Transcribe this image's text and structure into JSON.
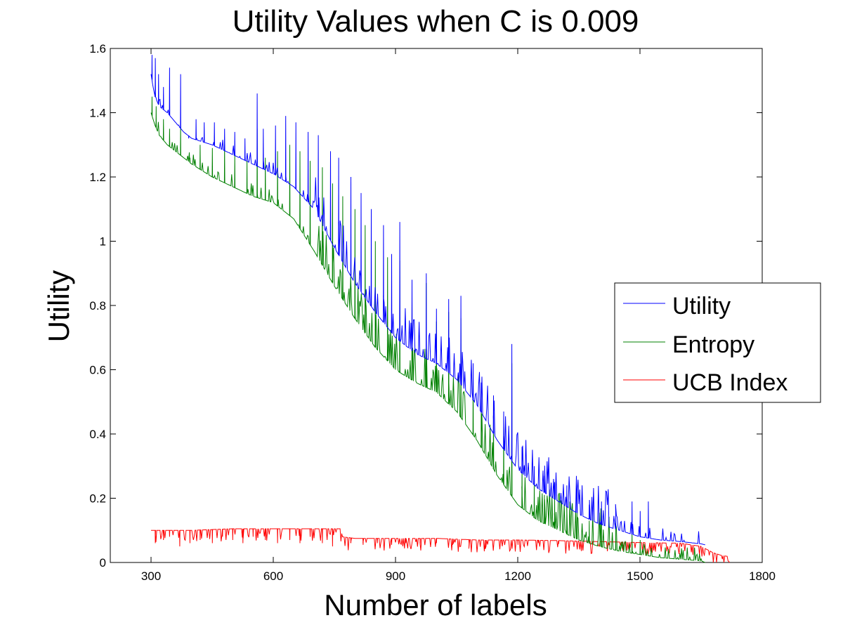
{
  "chart_data": {
    "type": "line",
    "title": "Utility Values when C is 0.009",
    "xlabel": "Number of labels",
    "ylabel": "Utility",
    "xlim": [
      200,
      1800
    ],
    "ylim": [
      0,
      1.6
    ],
    "x_ticks": [
      300,
      600,
      900,
      1200,
      1500,
      1800
    ],
    "y_ticks": [
      0,
      0.2,
      0.4,
      0.6,
      0.8,
      1,
      1.2,
      1.4,
      1.6
    ],
    "grid": false,
    "legend_position": "right",
    "series": [
      {
        "name": "Utility",
        "color": "#0000ff",
        "x": [
          300,
          305,
          310,
          320,
          340,
          360,
          380,
          400,
          450,
          500,
          550,
          600,
          650,
          700,
          750,
          800,
          850,
          900,
          950,
          1000,
          1050,
          1100,
          1150,
          1200,
          1250,
          1300,
          1350,
          1400,
          1450,
          1500,
          1550,
          1600,
          1650,
          1660
        ],
        "y": [
          1.52,
          1.48,
          1.45,
          1.42,
          1.4,
          1.37,
          1.34,
          1.32,
          1.3,
          1.27,
          1.24,
          1.21,
          1.17,
          1.1,
          0.98,
          0.87,
          0.78,
          0.7,
          0.65,
          0.62,
          0.57,
          0.49,
          0.38,
          0.29,
          0.23,
          0.19,
          0.15,
          0.12,
          0.1,
          0.08,
          0.07,
          0.065,
          0.058,
          0.055
        ],
        "spikes": [
          [
            302,
            1.58
          ],
          [
            310,
            1.57
          ],
          [
            318,
            1.52
          ],
          [
            330,
            1.48
          ],
          [
            345,
            1.54
          ],
          [
            372,
            1.52
          ],
          [
            392,
            1.32
          ],
          [
            410,
            1.38
          ],
          [
            430,
            1.37
          ],
          [
            455,
            1.37
          ],
          [
            480,
            1.35
          ],
          [
            505,
            1.34
          ],
          [
            530,
            1.32
          ],
          [
            560,
            1.46
          ],
          [
            575,
            1.35
          ],
          [
            605,
            1.36
          ],
          [
            630,
            1.39
          ],
          [
            655,
            1.37
          ],
          [
            685,
            1.34
          ],
          [
            710,
            1.33
          ],
          [
            740,
            1.28
          ],
          [
            760,
            1.26
          ],
          [
            790,
            1.2
          ],
          [
            815,
            1.15
          ],
          [
            840,
            1.1
          ],
          [
            870,
            1.05
          ],
          [
            890,
            0.96
          ],
          [
            910,
            1.06
          ],
          [
            940,
            0.88
          ],
          [
            975,
            0.9
          ],
          [
            1000,
            0.79
          ],
          [
            1030,
            0.82
          ],
          [
            1060,
            0.83
          ],
          [
            1090,
            0.62
          ],
          [
            1110,
            0.56
          ],
          [
            1140,
            0.52
          ],
          [
            1165,
            0.47
          ],
          [
            1185,
            0.68
          ],
          [
            1210,
            0.36
          ],
          [
            1240,
            0.3
          ],
          [
            1265,
            0.27
          ],
          [
            1290,
            0.25
          ],
          [
            1320,
            0.24
          ],
          [
            1345,
            0.22
          ],
          [
            1375,
            0.18
          ],
          [
            1405,
            0.19
          ],
          [
            1440,
            0.14
          ],
          [
            1480,
            0.19
          ],
          [
            1500,
            0.16
          ],
          [
            1520,
            0.19
          ]
        ]
      },
      {
        "name": "Entropy",
        "color": "#008000",
        "x": [
          300,
          305,
          310,
          320,
          340,
          360,
          380,
          400,
          450,
          500,
          550,
          600,
          650,
          700,
          750,
          800,
          850,
          900,
          950,
          1000,
          1050,
          1100,
          1150,
          1200,
          1250,
          1300,
          1350,
          1400,
          1450,
          1500,
          1550,
          1600,
          1650,
          1660
        ],
        "y": [
          1.4,
          1.38,
          1.36,
          1.33,
          1.3,
          1.28,
          1.26,
          1.24,
          1.2,
          1.17,
          1.14,
          1.12,
          1.07,
          0.97,
          0.86,
          0.76,
          0.67,
          0.6,
          0.56,
          0.53,
          0.47,
          0.38,
          0.27,
          0.18,
          0.13,
          0.1,
          0.07,
          0.05,
          0.035,
          0.025,
          0.015,
          0.01,
          0.005,
          0.0
        ],
        "spikes": [
          [
            302,
            1.45
          ],
          [
            312,
            1.42
          ],
          [
            330,
            1.38
          ],
          [
            345,
            1.35
          ],
          [
            372,
            1.36
          ],
          [
            395,
            1.26
          ],
          [
            420,
            1.3
          ],
          [
            450,
            1.29
          ],
          [
            480,
            1.3
          ],
          [
            505,
            1.27
          ],
          [
            535,
            1.25
          ],
          [
            560,
            1.35
          ],
          [
            580,
            1.26
          ],
          [
            610,
            1.28
          ],
          [
            640,
            1.3
          ],
          [
            665,
            1.28
          ],
          [
            690,
            1.25
          ],
          [
            720,
            1.23
          ],
          [
            745,
            1.18
          ],
          [
            770,
            1.14
          ],
          [
            800,
            1.1
          ],
          [
            825,
            1.05
          ],
          [
            850,
            1.0
          ],
          [
            880,
            0.95
          ],
          [
            910,
            0.94
          ],
          [
            940,
            0.82
          ],
          [
            975,
            0.87
          ],
          [
            1000,
            0.75
          ],
          [
            1030,
            0.78
          ],
          [
            1060,
            0.76
          ],
          [
            1090,
            0.58
          ],
          [
            1110,
            0.52
          ],
          [
            1140,
            0.48
          ],
          [
            1165,
            0.43
          ],
          [
            1185,
            0.62
          ],
          [
            1210,
            0.3
          ],
          [
            1240,
            0.25
          ],
          [
            1265,
            0.21
          ],
          [
            1290,
            0.2
          ],
          [
            1320,
            0.18
          ],
          [
            1345,
            0.16
          ],
          [
            1375,
            0.13
          ],
          [
            1405,
            0.12
          ],
          [
            1440,
            0.08
          ],
          [
            1480,
            0.09
          ],
          [
            1500,
            0.07
          ]
        ]
      },
      {
        "name": "UCB Index",
        "color": "#ff0000",
        "x": [
          300,
          400,
          500,
          600,
          700,
          765,
          770,
          800,
          900,
          1000,
          1100,
          1200,
          1300,
          1400,
          1500,
          1600,
          1650,
          1680,
          1700,
          1720
        ],
        "y": [
          0.1,
          0.1,
          0.105,
          0.105,
          0.105,
          0.105,
          0.08,
          0.075,
          0.075,
          0.075,
          0.07,
          0.07,
          0.068,
          0.065,
          0.062,
          0.06,
          0.05,
          0.03,
          0.022,
          0.018
        ],
        "dips": [
          [
            310,
            0.06
          ],
          [
            330,
            0.07
          ],
          [
            345,
            0.08
          ],
          [
            370,
            0.05
          ],
          [
            395,
            0.06
          ],
          [
            420,
            0.07
          ],
          [
            450,
            0.06
          ],
          [
            475,
            0.08
          ],
          [
            500,
            0.07
          ],
          [
            525,
            0.06
          ],
          [
            550,
            0.08
          ],
          [
            580,
            0.07
          ],
          [
            610,
            0.06
          ],
          [
            640,
            0.07
          ],
          [
            665,
            0.06
          ],
          [
            690,
            0.08
          ],
          [
            720,
            0.06
          ],
          [
            745,
            0.05
          ],
          [
            790,
            0.06
          ],
          [
            820,
            0.055
          ],
          [
            855,
            0.06
          ],
          [
            890,
            0.055
          ],
          [
            925,
            0.06
          ],
          [
            960,
            0.055
          ],
          [
            1000,
            0.06
          ],
          [
            1040,
            0.055
          ],
          [
            1080,
            0.06
          ],
          [
            1120,
            0.055
          ],
          [
            1160,
            0.06
          ],
          [
            1200,
            0.055
          ],
          [
            1250,
            0.06
          ],
          [
            1300,
            0.058
          ]
        ]
      }
    ]
  }
}
